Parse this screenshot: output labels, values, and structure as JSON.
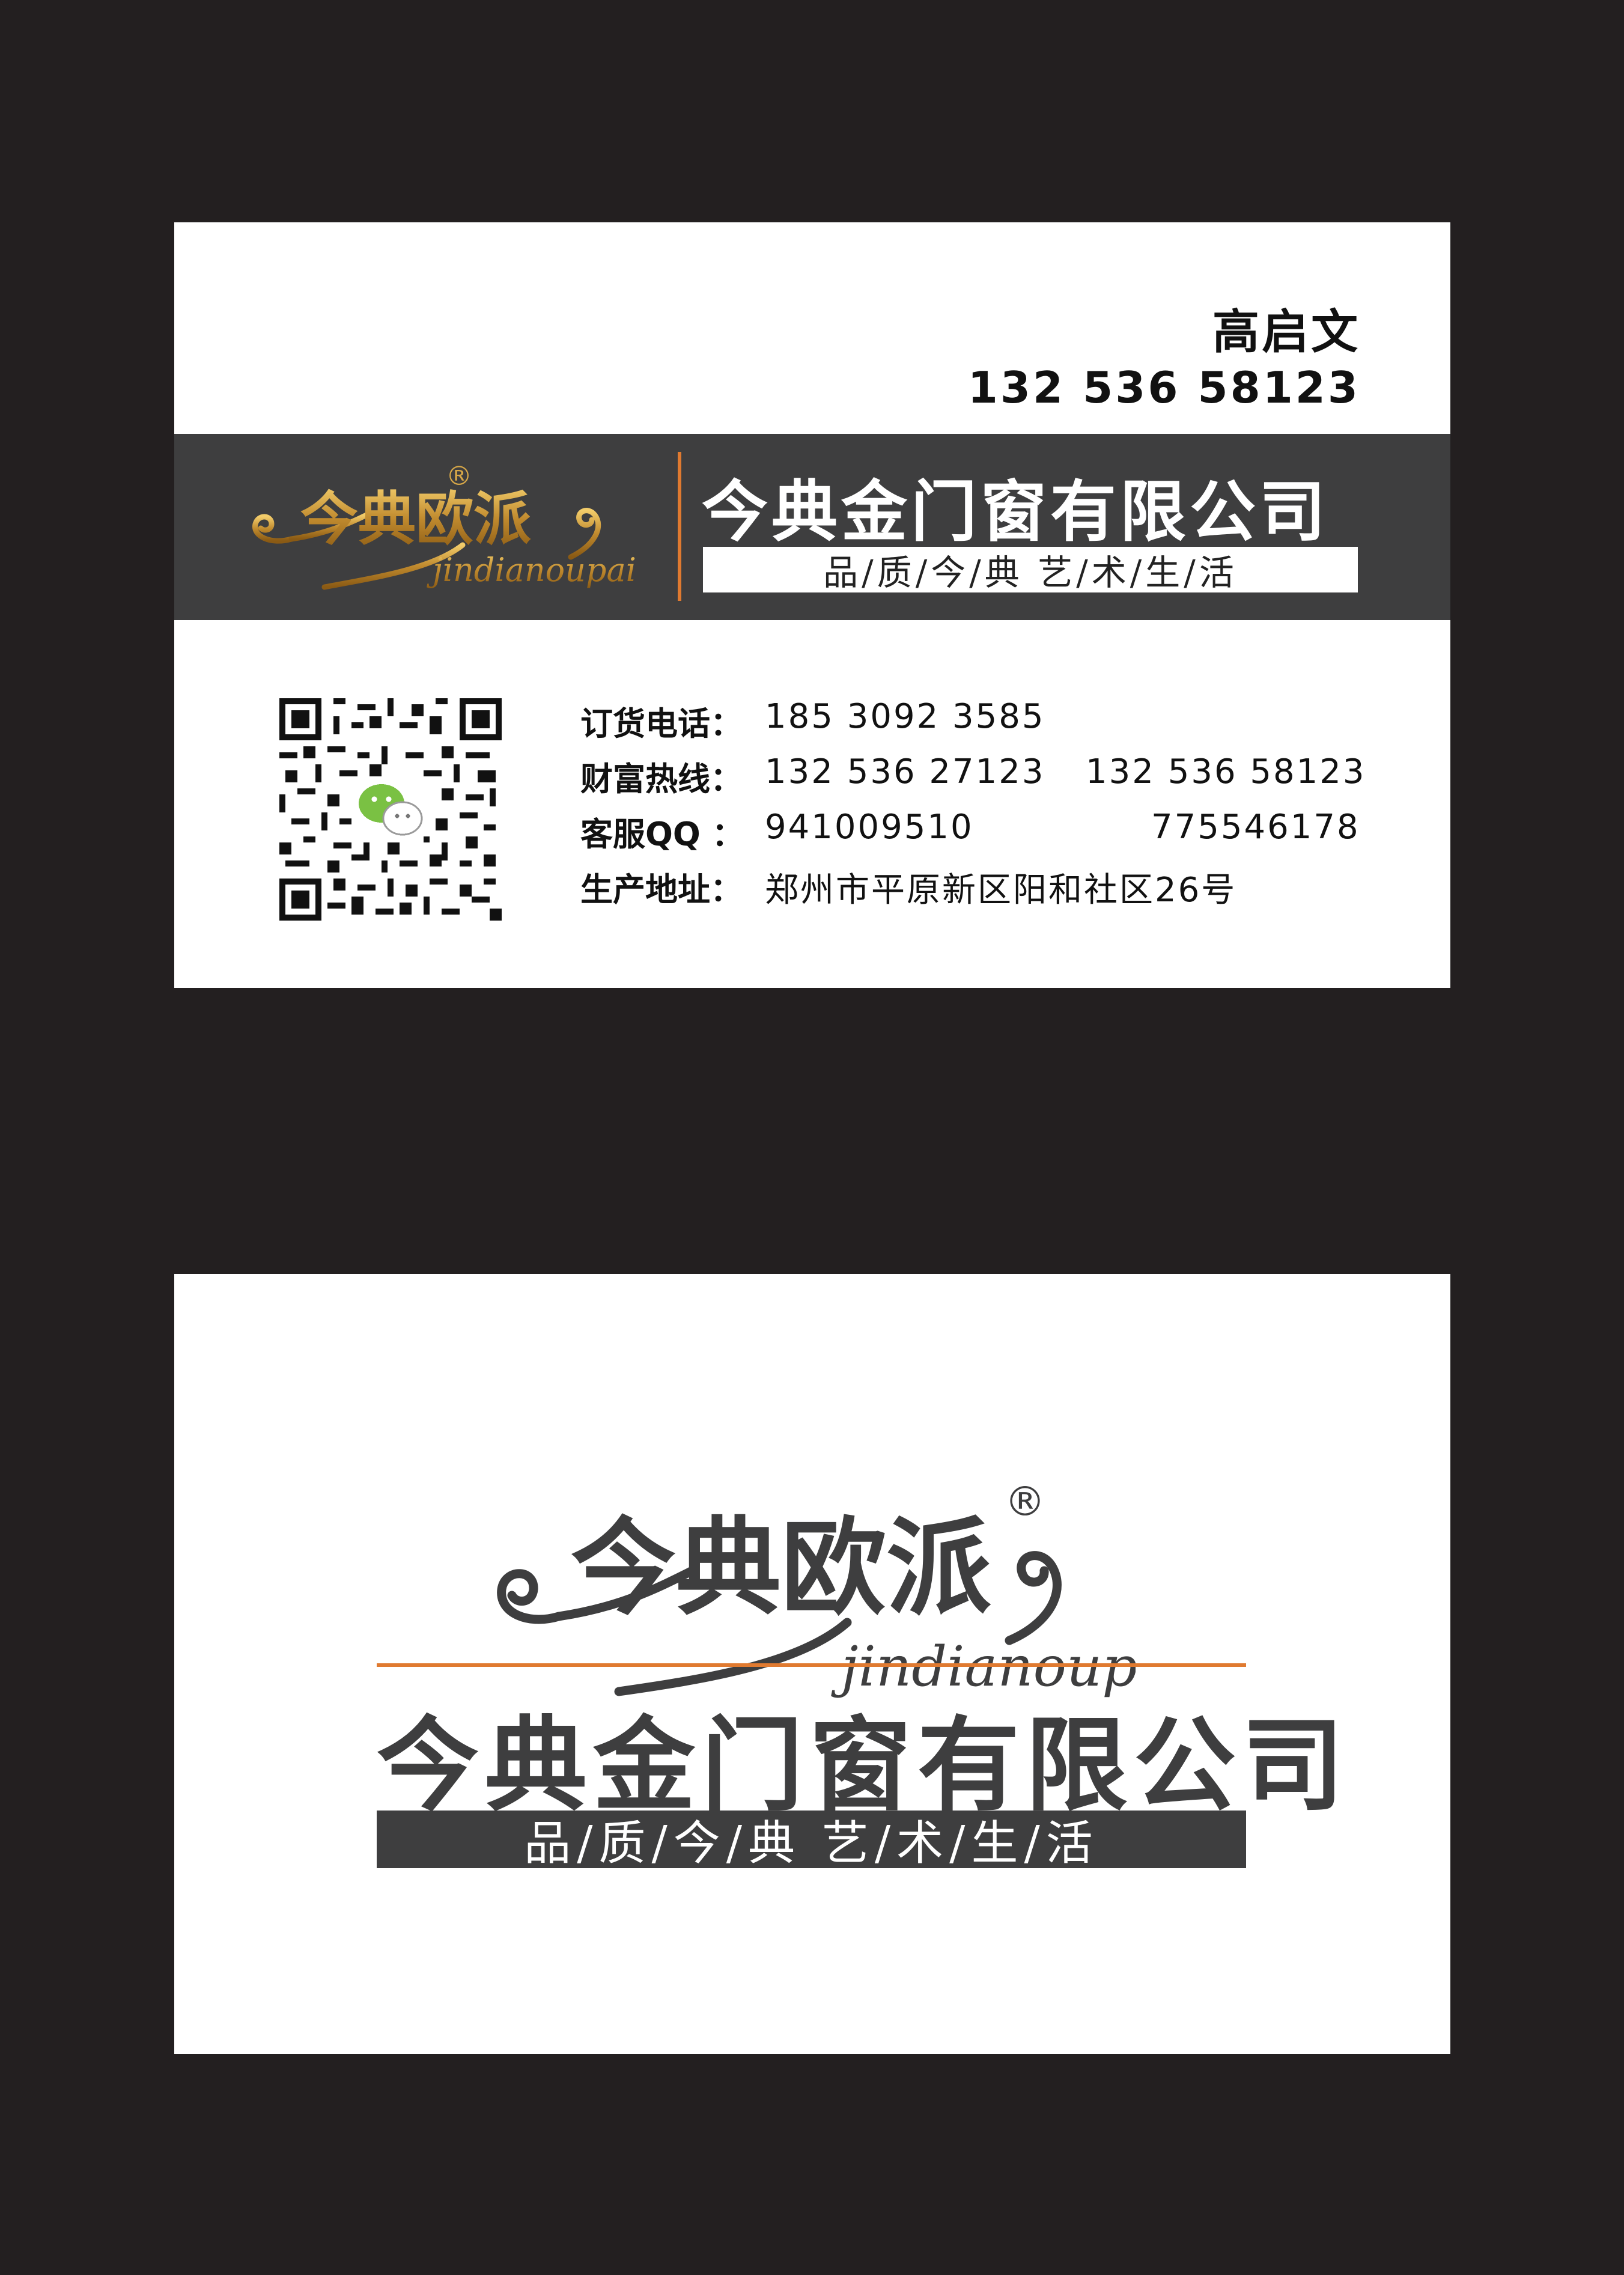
{
  "front": {
    "name": "高启文",
    "phone": "132 536 58123",
    "company": "今典金门窗有限公司",
    "slogan": "品/质/今/典  艺/术/生/活",
    "logo": {
      "chinese": "今典欧派",
      "pinyin": "jindianoupai",
      "registered": "®"
    },
    "qr_icon": "wechat-qr-code",
    "contacts": {
      "order_label": "订货电话：",
      "order_value": "185 3092 3585",
      "hotline_label": "财富热线：",
      "hotline_value1": "132 536 27123",
      "hotline_value2": "132 536 58123",
      "qq_label": "客服QQ ：",
      "qq_value1": "941009510",
      "qq_value2": "775546178",
      "address_label": "生产地址：",
      "address_value": "郑州市平原新区阳和社区26号"
    }
  },
  "back": {
    "logo": {
      "chinese": "今典欧派",
      "pinyin": "jindianoupai",
      "registered": "®"
    },
    "company": "今典金门窗有限公司",
    "slogan": "品/质/今/典  艺/术/生/活"
  },
  "colors": {
    "background": "#231f20",
    "band": "#3e3e3f",
    "accent_orange": "#e07a30",
    "logo_gold": "#c08a2e"
  }
}
